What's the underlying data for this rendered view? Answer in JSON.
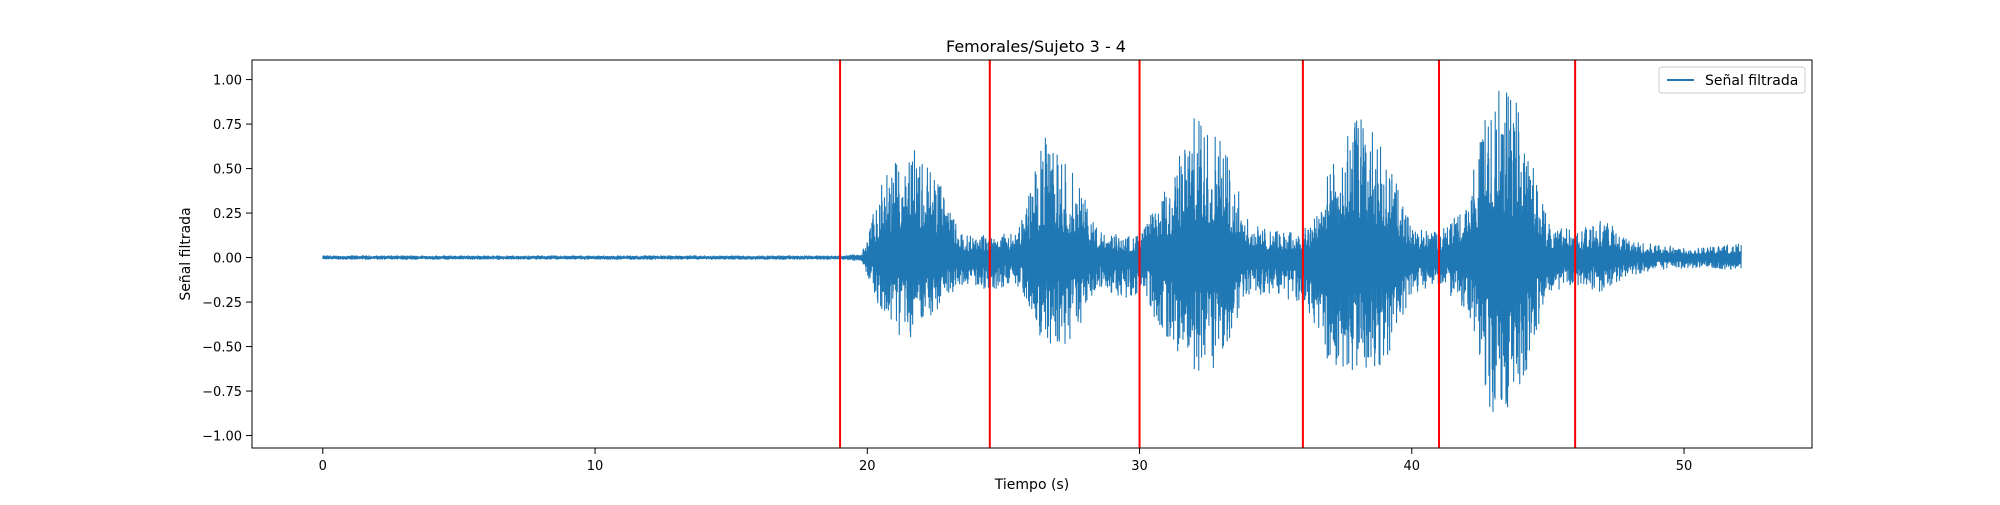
{
  "chart_data": {
    "type": "line",
    "title": "Femorales/Sujeto 3 - 4",
    "xlabel": "Tiempo (s)",
    "ylabel": "Señal filtrada",
    "xlim": [
      -2.6,
      54.7
    ],
    "ylim": [
      -1.07,
      1.11
    ],
    "xticks": [
      0,
      10,
      20,
      30,
      40,
      50
    ],
    "xtick_labels": [
      "0",
      "10",
      "20",
      "30",
      "40",
      "50"
    ],
    "yticks": [
      1.0,
      0.75,
      0.5,
      0.25,
      0.0,
      -0.25,
      -0.5,
      -0.75,
      -1.0
    ],
    "ytick_labels": [
      "1.00",
      "0.75",
      "0.50",
      "0.25",
      "0.00",
      "−0.25",
      "−0.50",
      "−0.75",
      "−1.00"
    ],
    "grid": false,
    "legend": {
      "position": "top-right",
      "entries": [
        "Señal filtrada"
      ]
    },
    "series": [
      {
        "name": "Señal filtrada",
        "color": "#1f77b4",
        "envelope": {
          "x": [
            0,
            18.0,
            19.0,
            19.8,
            20.5,
            21.5,
            22.5,
            23.5,
            24.5,
            25.5,
            26.5,
            27.5,
            28.5,
            29.5,
            30.0,
            31.0,
            32.0,
            33.0,
            34.0,
            35.0,
            36.0,
            37.0,
            38.0,
            39.0,
            40.0,
            41.0,
            42.0,
            43.0,
            44.0,
            45.0,
            46.0,
            47.0,
            48.0,
            49.0,
            50.0,
            51.0,
            52.1
          ],
          "upper": [
            0.01,
            0.01,
            0.01,
            0.02,
            0.4,
            0.68,
            0.48,
            0.12,
            0.14,
            0.13,
            0.68,
            0.5,
            0.15,
            0.12,
            0.13,
            0.4,
            0.8,
            0.72,
            0.2,
            0.15,
            0.14,
            0.5,
            0.83,
            0.6,
            0.17,
            0.14,
            0.3,
            1.02,
            0.84,
            0.2,
            0.15,
            0.22,
            0.1,
            0.07,
            0.06,
            0.06,
            0.08
          ],
          "lower": [
            -0.01,
            -0.01,
            -0.01,
            -0.02,
            -0.3,
            -0.5,
            -0.3,
            -0.15,
            -0.18,
            -0.15,
            -0.5,
            -0.48,
            -0.16,
            -0.25,
            -0.2,
            -0.45,
            -0.65,
            -0.62,
            -0.22,
            -0.2,
            -0.28,
            -0.6,
            -0.65,
            -0.62,
            -0.2,
            -0.15,
            -0.3,
            -0.96,
            -0.75,
            -0.2,
            -0.15,
            -0.2,
            -0.1,
            -0.07,
            -0.06,
            -0.06,
            -0.07
          ]
        }
      }
    ],
    "vlines": {
      "color": "#ff0000",
      "x": [
        19.0,
        24.5,
        30.0,
        36.0,
        41.0,
        46.0
      ]
    }
  }
}
